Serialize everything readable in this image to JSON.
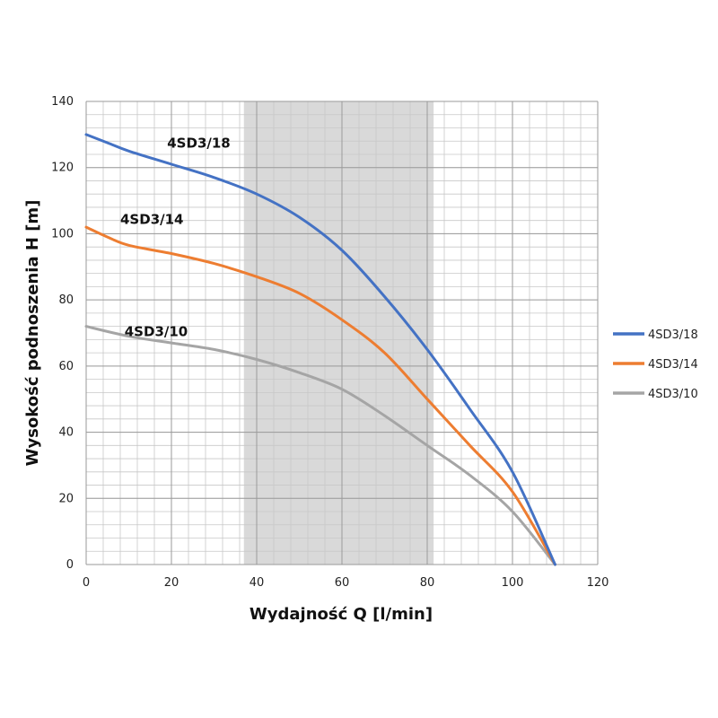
{
  "chart_data": {
    "type": "line",
    "xlabel": "Wydajność Q [l/min]",
    "ylabel": "Wysokość podnoszenia H [m]",
    "xlim": [
      0,
      120
    ],
    "ylim": [
      0,
      140
    ],
    "xticks": [
      0,
      20,
      40,
      60,
      80,
      100,
      120
    ],
    "yticks": [
      0,
      20,
      40,
      60,
      80,
      100,
      120,
      140
    ],
    "minor_x_step": 4,
    "minor_y_step": 4,
    "grid": true,
    "legend_position": "right",
    "highlight_band": {
      "x": [
        37,
        81.5
      ],
      "color": "#d9d9d9"
    },
    "series": [
      {
        "name": "4SD3/18",
        "color": "#4472c4",
        "label": "4SD3/18",
        "label_at": [
          19,
          126
        ],
        "points": [
          [
            0,
            130
          ],
          [
            5,
            127.5
          ],
          [
            10,
            125
          ],
          [
            20,
            121
          ],
          [
            30,
            117
          ],
          [
            40,
            112
          ],
          [
            50,
            105
          ],
          [
            60,
            95
          ],
          [
            70,
            81
          ],
          [
            80,
            65
          ],
          [
            90,
            47
          ],
          [
            100,
            28
          ],
          [
            110,
            0
          ]
        ]
      },
      {
        "name": "4SD3/14",
        "color": "#ed7d31",
        "label": "4SD3/14",
        "label_at": [
          8,
          103
        ],
        "points": [
          [
            0,
            102
          ],
          [
            5,
            99
          ],
          [
            10,
            96.5
          ],
          [
            20,
            94
          ],
          [
            30,
            91
          ],
          [
            40,
            87
          ],
          [
            50,
            82
          ],
          [
            60,
            74
          ],
          [
            70,
            64
          ],
          [
            80,
            50
          ],
          [
            90,
            36
          ],
          [
            100,
            22
          ],
          [
            110,
            0
          ]
        ]
      },
      {
        "name": "4SD3/10",
        "color": "#a5a5a5",
        "label": "4SD3/10",
        "label_at": [
          9,
          69
        ],
        "points": [
          [
            0,
            72
          ],
          [
            10,
            69
          ],
          [
            20,
            67
          ],
          [
            30,
            65
          ],
          [
            40,
            62
          ],
          [
            50,
            58
          ],
          [
            60,
            53
          ],
          [
            70,
            45
          ],
          [
            80,
            36
          ],
          [
            90,
            27
          ],
          [
            100,
            16
          ],
          [
            110,
            0
          ]
        ]
      }
    ]
  }
}
